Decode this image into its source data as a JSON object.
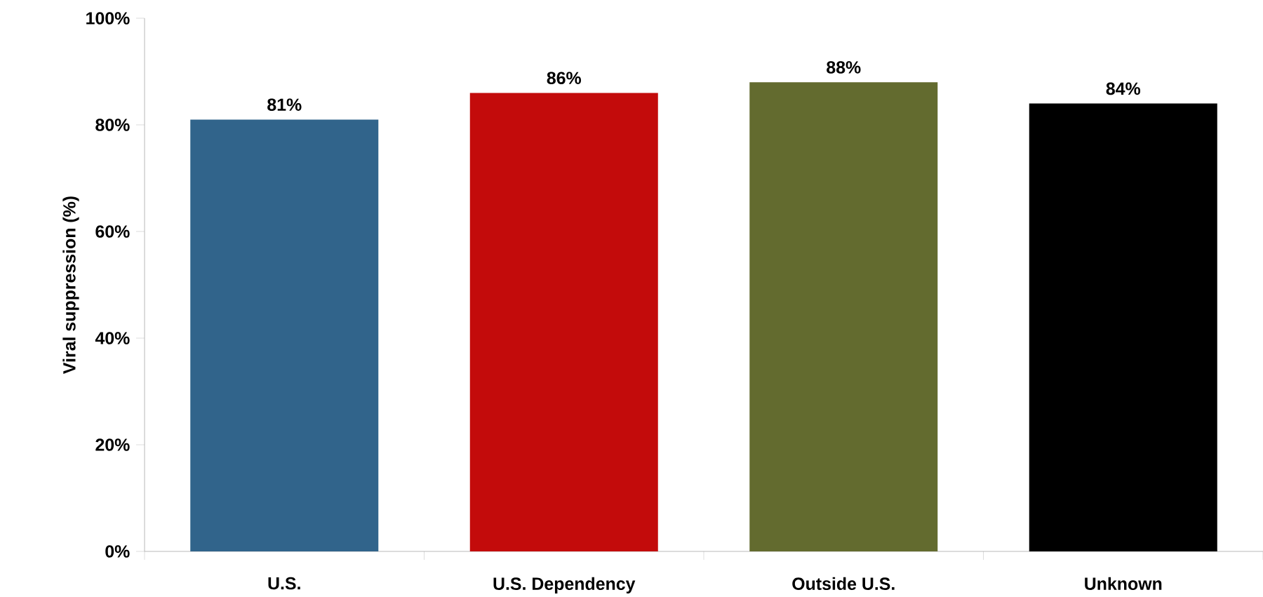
{
  "chart_data": {
    "type": "bar",
    "ylabel": "Viral suppression (%)",
    "categories": [
      "U.S.",
      "U.S. Dependency",
      "Outside U.S.",
      "Unknown"
    ],
    "values": [
      81,
      86,
      88,
      84
    ],
    "value_labels": [
      "81%",
      "86%",
      "88%",
      "84%"
    ],
    "colors": [
      "#31648b",
      "#c30b0b",
      "#636b2f",
      "#000000"
    ],
    "ylim": [
      0,
      100
    ],
    "yticks": [
      {
        "value": 0,
        "label": "0%"
      },
      {
        "value": 20,
        "label": "20%"
      },
      {
        "value": 40,
        "label": "40%"
      },
      {
        "value": 60,
        "label": "60%"
      },
      {
        "value": 80,
        "label": "80%"
      },
      {
        "value": 100,
        "label": "100%"
      }
    ],
    "grid": false
  }
}
